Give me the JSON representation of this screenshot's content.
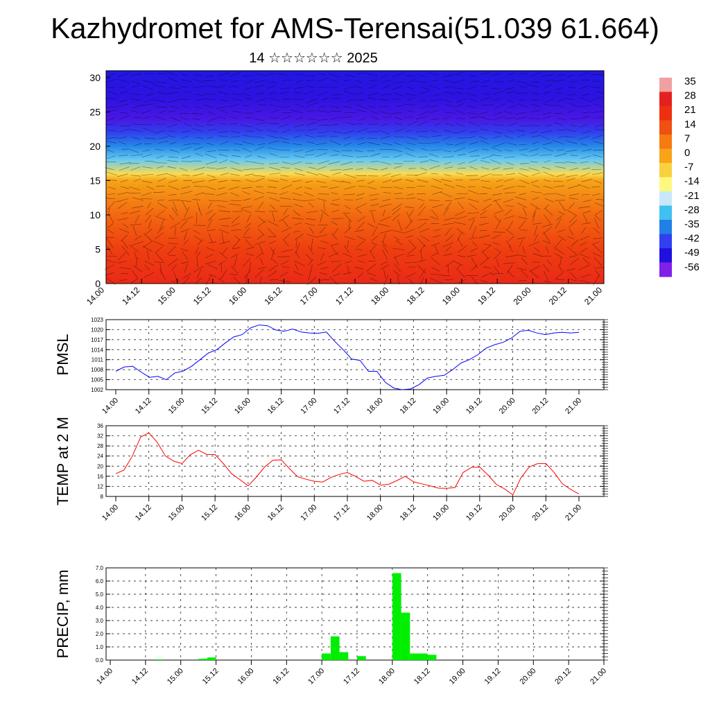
{
  "header": {
    "title": "Kazhydromet for AMS-Terensai(51.039 61.664)",
    "subtitle": "14 ☆☆☆☆☆☆ 2025"
  },
  "colors": {
    "pmsl_line": "#0000ff",
    "temp_line": "#ff0000",
    "precip_bar": "#00ee00"
  },
  "chart_data": [
    {
      "type": "heatmap",
      "id": "upper_air",
      "x_ticklabels": [
        "14.00",
        "14.12",
        "15.00",
        "15.12",
        "16.00",
        "16.12",
        "17.00",
        "17.12",
        "18.00",
        "18.12",
        "19.00",
        "19.12",
        "20.00",
        "20.12",
        "21.00"
      ],
      "ylim": [
        0,
        31
      ],
      "y_ticks": [
        0,
        5,
        10,
        15,
        20,
        25,
        30
      ],
      "colorbar_labels": [
        "35",
        "28",
        "21",
        "14",
        "7",
        "0",
        "-7",
        "-14",
        "-21",
        "-28",
        "-35",
        "-42",
        "-49",
        "-56"
      ],
      "colorbar_colors": [
        "#f0a0a0",
        "#e52020",
        "#ee3010",
        "#f05010",
        "#f57a10",
        "#f7a418",
        "#f8d040",
        "#fff880",
        "#c8e8f8",
        "#40c0f0",
        "#2080e8",
        "#3040f0",
        "#2010e0",
        "#8020e8"
      ],
      "profile": [
        {
          "h": 0,
          "temp": 24
        },
        {
          "h": 5,
          "temp": 18
        },
        {
          "h": 10,
          "temp": 10
        },
        {
          "h": 15,
          "temp": 0
        },
        {
          "h": 16,
          "temp": -9
        },
        {
          "h": 18,
          "temp": -26
        },
        {
          "h": 20,
          "temp": -34
        },
        {
          "h": 22,
          "temp": -42
        },
        {
          "h": 24,
          "temp": -52
        },
        {
          "h": 27,
          "temp": -50
        },
        {
          "h": 31,
          "temp": -48
        }
      ]
    },
    {
      "type": "line",
      "id": "pmsl",
      "ylabel": "PMSL",
      "ylim": [
        1002,
        1023
      ],
      "y_ticks": [
        1002,
        1005,
        1008,
        1011,
        1014,
        1017,
        1020,
        1023
      ],
      "x_ticklabels": [
        "14.00",
        "14.12",
        "15.00",
        "15.12",
        "16.00",
        "16.12",
        "17.00",
        "17.12",
        "18.00",
        "18.12",
        "19.00",
        "19.12",
        "20.00",
        "20.12",
        "21.00"
      ],
      "step_hours": 3,
      "values": [
        1007.5,
        1008.8,
        1009,
        1007.3,
        1005.7,
        1006,
        1005,
        1007,
        1007.6,
        1009,
        1011,
        1013,
        1014,
        1016,
        1017.8,
        1018.5,
        1020.5,
        1021.4,
        1021.2,
        1019.9,
        1019.5,
        1020.2,
        1019.3,
        1019,
        1018.9,
        1019.3,
        1016.5,
        1014,
        1011.2,
        1010.8,
        1007.5,
        1007.5,
        1004.2,
        1002.5,
        1002,
        1002.2,
        1003.5,
        1005.5,
        1006,
        1006.3,
        1008,
        1010,
        1011,
        1012.5,
        1014.5,
        1015.5,
        1016.2,
        1017.5,
        1019.5,
        1019.8,
        1019,
        1018.5,
        1019,
        1019.2,
        1019,
        1019.2
      ]
    },
    {
      "type": "line",
      "id": "temp",
      "ylabel": "TEMP at 2 M",
      "ylim": [
        8,
        36
      ],
      "y_ticks": [
        8,
        12,
        16,
        20,
        24,
        28,
        32,
        36
      ],
      "x_ticklabels": [
        "14.00",
        "14.12",
        "15.00",
        "15.12",
        "16.00",
        "16.12",
        "17.00",
        "17.12",
        "18.00",
        "18.12",
        "19.00",
        "19.12",
        "20.00",
        "20.12",
        "21.00"
      ],
      "step_hours": 3,
      "values": [
        17,
        18.5,
        24,
        31.5,
        33.2,
        29.5,
        24,
        22,
        21,
        24.5,
        26.3,
        24.6,
        24.6,
        21,
        17,
        14.7,
        12.2,
        15.7,
        19.7,
        22.3,
        22.5,
        19,
        15.8,
        14.8,
        14,
        13.7,
        15.5,
        16.7,
        17.5,
        15.9,
        14,
        14.4,
        12.5,
        12.8,
        14.3,
        16,
        13.8,
        13,
        12.2,
        11.3,
        11.2,
        11.5,
        17.5,
        19.5,
        19.6,
        16.5,
        12.8,
        11,
        8.6,
        15.5,
        19.7,
        21,
        21,
        17.5,
        13,
        10.8,
        9
      ]
    },
    {
      "type": "bar",
      "id": "precip",
      "ylabel": "PRECIP, mm",
      "ylim": [
        0,
        7
      ],
      "y_ticklabels": [
        "0.0",
        "1.0",
        "2.0",
        "3.0",
        "4.0",
        "5.0",
        "6.0",
        "7.0"
      ],
      "x_ticklabels": [
        "14.00",
        "14.12",
        "15.00",
        "15.12",
        "16.00",
        "16.12",
        "17.00",
        "17.12",
        "18.00",
        "18.12",
        "19.00",
        "19.12",
        "20.00",
        "20.12",
        "21.00"
      ],
      "step_hours": 3,
      "values": [
        0,
        0,
        0,
        0,
        0,
        0.05,
        0,
        0,
        0,
        0,
        0.1,
        0.2,
        0,
        0,
        0,
        0,
        0,
        0,
        0,
        0,
        0,
        0,
        0,
        0,
        0.5,
        1.8,
        0.6,
        0,
        0.3,
        0,
        0,
        0,
        6.6,
        3.6,
        0.5,
        0.5,
        0.4,
        0,
        0,
        0,
        0,
        0,
        0,
        0,
        0,
        0,
        0,
        0,
        0,
        0,
        0,
        0,
        0,
        0,
        0,
        0
      ]
    }
  ]
}
